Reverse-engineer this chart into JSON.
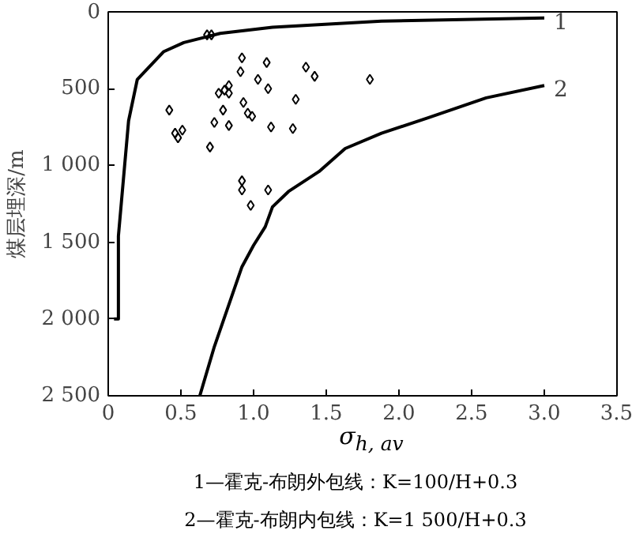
{
  "chart_data": {
    "type": "scatter",
    "xlabel": "σ$_{h, av}$",
    "ylabel": "煤层埋深/m",
    "xlim": [
      0,
      3.5
    ],
    "ylim": [
      2500,
      0
    ],
    "xticks": [
      0,
      0.5,
      {
        "value": 1,
        "label": "1.0"
      },
      1.5,
      {
        "value": 2,
        "label": "2.0"
      },
      2.5,
      {
        "value": 3,
        "label": "3.0"
      },
      3.5
    ],
    "yticks": [
      0,
      500,
      {
        "value": 1000,
        "label": "1 000"
      },
      {
        "value": 1500,
        "label": "1 500"
      },
      {
        "value": 2000,
        "label": "2 000"
      },
      {
        "value": 2500,
        "label": "2 500"
      }
    ],
    "grid": false,
    "series": [
      {
        "type": "line",
        "color": "#000000",
        "line_style": "solid",
        "marker": "none",
        "x": [
          0.04,
          0.07,
          0.07,
          0.14,
          0.2,
          0.38,
          0.52,
          0.77,
          1.13,
          1.88,
          3.0
        ],
        "values": [
          2000,
          2000,
          1460,
          710,
          440,
          260,
          200,
          140,
          100,
          60,
          40
        ]
      },
      {
        "type": "line",
        "color": "#000000",
        "line_style": "solid",
        "marker": "none",
        "x": [
          0.63,
          0.73,
          0.92,
          1.0,
          1.08,
          1.13,
          1.24,
          1.45,
          1.63,
          1.88,
          2.2,
          2.6,
          3.0
        ],
        "values": [
          2500,
          2180,
          1660,
          1520,
          1400,
          1270,
          1170,
          1040,
          890,
          790,
          690,
          560,
          480
        ]
      },
      {
        "color": "#000000",
        "marker": "diamond",
        "x": [
          0.68,
          0.71,
          0.92,
          0.91,
          1.09,
          1.03,
          1.1,
          1.36,
          1.42,
          1.8,
          0.83,
          0.8,
          0.76,
          0.83,
          1.29,
          0.93,
          0.42,
          0.79,
          0.96,
          0.99,
          0.73,
          0.83,
          1.12,
          1.27,
          0.46,
          0.51,
          0.48,
          0.7,
          0.92,
          0.92,
          1.1,
          0.98
        ],
        "values": [
          150,
          150,
          300,
          390,
          330,
          440,
          500,
          360,
          420,
          440,
          480,
          510,
          530,
          530,
          570,
          590,
          640,
          640,
          660,
          680,
          720,
          740,
          750,
          760,
          790,
          770,
          820,
          880,
          1100,
          1160,
          1160,
          1260
        ]
      }
    ],
    "annotations": [
      {
        "text": "1",
        "x": 3.0,
        "y": 40
      },
      {
        "text": "2",
        "x": 3.0,
        "y": 480
      },
      "1—霍克-布朗外包线：K=100/H+0.3",
      "2—霍克-布朗内包线：K=1 500/H+0.3"
    ]
  }
}
